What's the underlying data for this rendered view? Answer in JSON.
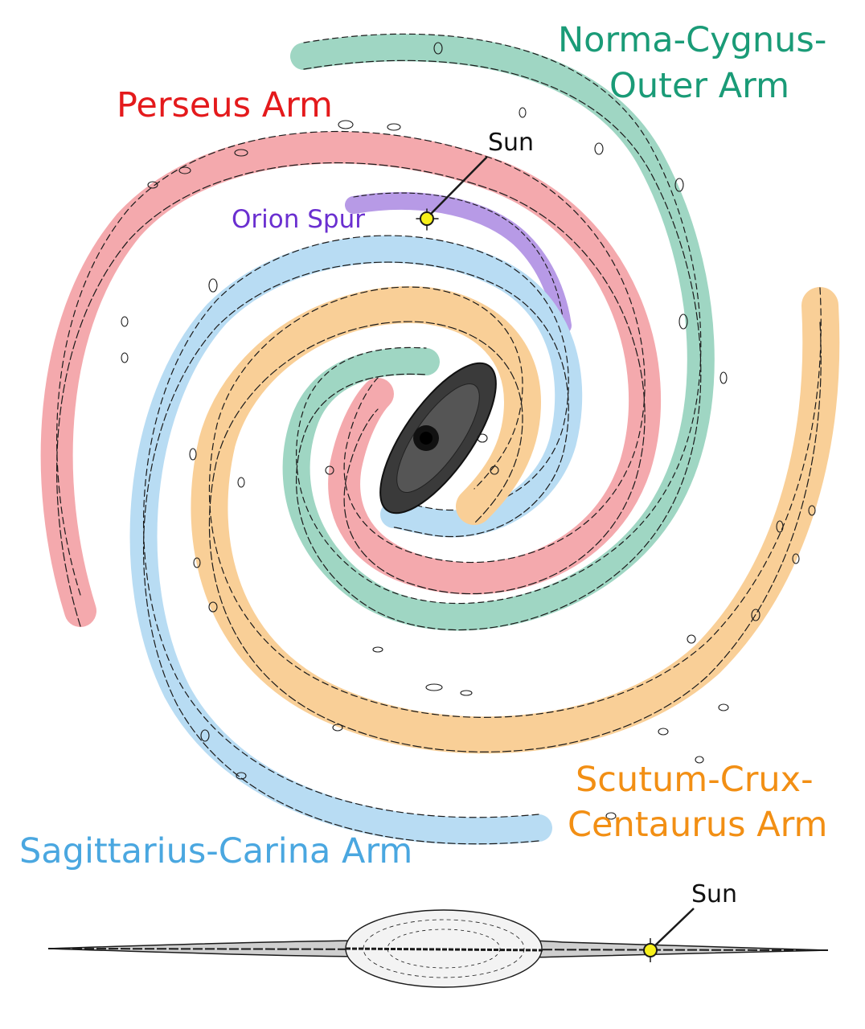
{
  "labels": {
    "perseus": "Perseus Arm",
    "norma_line1": "Norma-Cygnus-",
    "norma_line2": "Outer Arm",
    "orion": "Orion Spur",
    "sun_top": "Sun",
    "scutum_line1": "Scutum-Crux-",
    "scutum_line2": "Centaurus Arm",
    "sagittarius": "Sagittarius-Carina Arm",
    "sun_side": "Sun"
  },
  "colors": {
    "perseus": "#e41a1c",
    "perseus_fill": "#f4a9ad",
    "norma": "#1a9b77",
    "norma_fill": "#9fd6c3",
    "orion": "#6a2fd0",
    "orion_fill": "#b79ae6",
    "scutum": "#f28f14",
    "scutum_fill": "#f9cf97",
    "sagittarius": "#4aa7e0",
    "sagittarius_fill": "#b8dcf3",
    "sun": "#f7f01a",
    "ink": "#1a1a1a"
  },
  "icons": {
    "sun_marker": "sun-icon",
    "bulge": "galactic-bulge-icon"
  }
}
